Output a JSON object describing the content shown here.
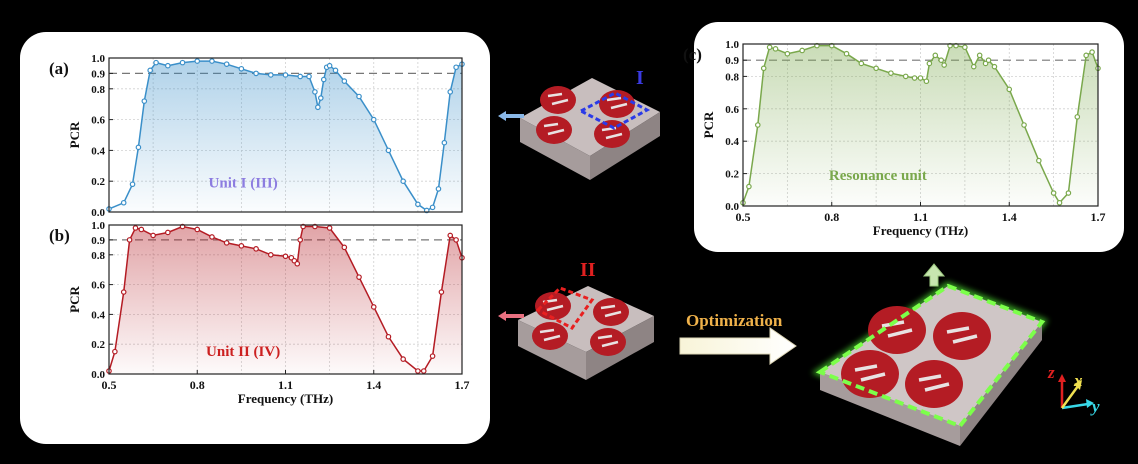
{
  "colors": {
    "blue": "#3a8fc9",
    "red": "#b41c24",
    "green": "#7aa84c",
    "unit1": "#8c7ce0",
    "unit2": "#cc2020",
    "resonance": "#7aa84c",
    "I_label": "#3a3ae0",
    "II_label": "#e02020",
    "optimization": "#f0b24a"
  },
  "labels": {
    "optimization": "Optimization",
    "I": "I",
    "II": "II",
    "axis_z": "z",
    "axis_x": "x",
    "axis_y": "y"
  },
  "chart_data": [
    {
      "id": "a",
      "type": "line",
      "panel_label": "(a)",
      "annotation": "Unit I (III)",
      "xlabel": "",
      "ylabel": "PCR",
      "xlim": [
        0.5,
        1.7
      ],
      "ylim": [
        0,
        1.0
      ],
      "yticks": [
        "0.0",
        "0.2",
        "0.4",
        "0.6",
        "0.8",
        "0.9",
        "1.0"
      ],
      "reference_line": 0.9,
      "x": [
        0.5,
        0.55,
        0.58,
        0.6,
        0.62,
        0.64,
        0.66,
        0.7,
        0.75,
        0.8,
        0.85,
        0.9,
        0.95,
        1.0,
        1.05,
        1.1,
        1.15,
        1.18,
        1.2,
        1.21,
        1.22,
        1.23,
        1.24,
        1.25,
        1.27,
        1.3,
        1.35,
        1.4,
        1.45,
        1.5,
        1.55,
        1.58,
        1.6,
        1.62,
        1.64,
        1.66,
        1.68,
        1.7
      ],
      "y": [
        0.02,
        0.06,
        0.18,
        0.42,
        0.72,
        0.92,
        0.97,
        0.95,
        0.97,
        0.98,
        0.98,
        0.96,
        0.93,
        0.9,
        0.89,
        0.89,
        0.88,
        0.88,
        0.78,
        0.68,
        0.74,
        0.86,
        0.94,
        0.95,
        0.92,
        0.85,
        0.75,
        0.6,
        0.4,
        0.2,
        0.05,
        0.01,
        0.03,
        0.15,
        0.45,
        0.78,
        0.94,
        0.96
      ]
    },
    {
      "id": "b",
      "type": "line",
      "panel_label": "(b)",
      "annotation": "Unit II (IV)",
      "xlabel": "Frequency (THz)",
      "ylabel": "PCR",
      "xlim": [
        0.5,
        1.7
      ],
      "ylim": [
        0,
        1.0
      ],
      "xticks": [
        "0.5",
        "0.8",
        "1.1",
        "1.4",
        "1.7"
      ],
      "yticks": [
        "0.0",
        "0.2",
        "0.4",
        "0.6",
        "0.8",
        "0.9",
        "1.0"
      ],
      "reference_line": 0.9,
      "x": [
        0.5,
        0.52,
        0.55,
        0.57,
        0.59,
        0.61,
        0.65,
        0.7,
        0.75,
        0.8,
        0.85,
        0.9,
        0.95,
        1.0,
        1.05,
        1.1,
        1.12,
        1.13,
        1.14,
        1.15,
        1.16,
        1.2,
        1.25,
        1.3,
        1.35,
        1.4,
        1.45,
        1.5,
        1.55,
        1.57,
        1.6,
        1.63,
        1.66,
        1.68,
        1.7
      ],
      "y": [
        0.02,
        0.15,
        0.55,
        0.9,
        0.98,
        0.97,
        0.93,
        0.95,
        0.99,
        0.97,
        0.92,
        0.88,
        0.86,
        0.84,
        0.8,
        0.79,
        0.78,
        0.76,
        0.74,
        0.9,
        0.99,
        0.99,
        0.98,
        0.85,
        0.65,
        0.45,
        0.25,
        0.1,
        0.02,
        0.02,
        0.12,
        0.55,
        0.93,
        0.9,
        0.78
      ]
    },
    {
      "id": "c",
      "type": "line",
      "panel_label": "(c)",
      "annotation": "Resonance unit",
      "xlabel": "Frequency (THz)",
      "ylabel": "PCR",
      "xlim": [
        0.5,
        1.7
      ],
      "ylim": [
        0,
        1.0
      ],
      "xticks": [
        "0.5",
        "0.8",
        "1.1",
        "1.4",
        "1.7"
      ],
      "yticks": [
        "0.0",
        "0.2",
        "0.4",
        "0.6",
        "0.8",
        "0.9",
        "1.0"
      ],
      "reference_line": 0.9,
      "x": [
        0.5,
        0.52,
        0.55,
        0.57,
        0.59,
        0.61,
        0.65,
        0.7,
        0.75,
        0.8,
        0.85,
        0.9,
        0.95,
        1.0,
        1.05,
        1.08,
        1.1,
        1.12,
        1.13,
        1.15,
        1.17,
        1.18,
        1.2,
        1.22,
        1.25,
        1.28,
        1.3,
        1.32,
        1.33,
        1.35,
        1.4,
        1.45,
        1.5,
        1.55,
        1.57,
        1.6,
        1.63,
        1.66,
        1.68,
        1.7
      ],
      "y": [
        0.02,
        0.12,
        0.5,
        0.85,
        0.98,
        0.97,
        0.94,
        0.96,
        0.99,
        0.99,
        0.94,
        0.88,
        0.85,
        0.82,
        0.8,
        0.79,
        0.79,
        0.77,
        0.88,
        0.93,
        0.9,
        0.87,
        0.99,
        0.99,
        0.98,
        0.86,
        0.93,
        0.88,
        0.9,
        0.86,
        0.72,
        0.5,
        0.28,
        0.08,
        0.02,
        0.08,
        0.55,
        0.93,
        0.95,
        0.85
      ]
    }
  ]
}
